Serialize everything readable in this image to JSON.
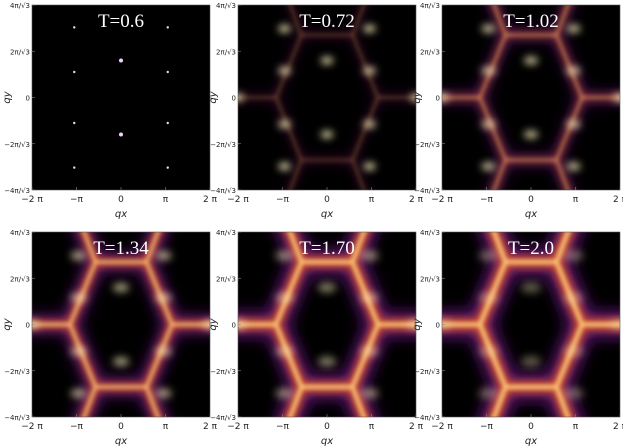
{
  "chart_data": [
    {
      "type": "heatmap",
      "title": "T=0.6",
      "xlabel": "qx",
      "ylabel": "qy",
      "xlim": [
        -6.2832,
        6.2832
      ],
      "ylim": [
        -7.2552,
        7.2552
      ],
      "xticks": [
        {
          "value": -6.2832,
          "label": "−2 π"
        },
        {
          "value": -3.1416,
          "label": "−π"
        },
        0,
        {
          "value": 3.1416,
          "label": "π"
        },
        {
          "value": 6.2832,
          "label": "2 π"
        }
      ],
      "yticks": [
        {
          "value": -7.2552,
          "label": "−4π/√3"
        },
        {
          "value": -3.6276,
          "label": "−2π/√3"
        },
        0,
        {
          "value": 3.6276,
          "label": "2π/√3"
        },
        {
          "value": 7.2552,
          "label": "4π/√3"
        }
      ]
    },
    {
      "type": "heatmap",
      "title": "T=0.72",
      "xlabel": "qx",
      "ylabel": "qy",
      "xlim": [
        -6.2832,
        6.2832
      ],
      "ylim": [
        -7.2552,
        7.2552
      ],
      "xticks": [
        {
          "value": -6.2832,
          "label": "−2 π"
        },
        {
          "value": -3.1416,
          "label": "−π"
        },
        0,
        {
          "value": 3.1416,
          "label": "π"
        },
        {
          "value": 6.2832,
          "label": "2 π"
        }
      ],
      "yticks": [
        {
          "value": -7.2552,
          "label": "−4π/√3"
        },
        {
          "value": -3.6276,
          "label": "−2π/√3"
        },
        0,
        {
          "value": 3.6276,
          "label": "2π/√3"
        },
        {
          "value": 7.2552,
          "label": "4π/√3"
        }
      ]
    },
    {
      "type": "heatmap",
      "title": "T=1.02",
      "xlabel": "qx",
      "ylabel": "qy",
      "xlim": [
        -6.2832,
        6.2832
      ],
      "ylim": [
        -7.2552,
        7.2552
      ],
      "xticks": [
        {
          "value": -6.2832,
          "label": "−2 π"
        },
        {
          "value": -3.1416,
          "label": "−π"
        },
        0,
        {
          "value": 3.1416,
          "label": "π"
        },
        {
          "value": 6.2832,
          "label": "2 π"
        }
      ],
      "yticks": [
        {
          "value": -7.2552,
          "label": "−4π/√3"
        },
        {
          "value": -3.6276,
          "label": "−2π/√3"
        },
        0,
        {
          "value": 3.6276,
          "label": "2π/√3"
        },
        {
          "value": 7.2552,
          "label": "4π/√3"
        }
      ]
    },
    {
      "type": "heatmap",
      "title": "T=1.34",
      "xlabel": "qx",
      "ylabel": "qy",
      "xlim": [
        -6.2832,
        6.2832
      ],
      "ylim": [
        -7.2552,
        7.2552
      ],
      "xticks": [
        {
          "value": -6.2832,
          "label": "−2 π"
        },
        {
          "value": -3.1416,
          "label": "−π"
        },
        0,
        {
          "value": 3.1416,
          "label": "π"
        },
        {
          "value": 6.2832,
          "label": "2 π"
        }
      ],
      "yticks": [
        {
          "value": -7.2552,
          "label": "−4π/√3"
        },
        {
          "value": -3.6276,
          "label": "−2π/√3"
        },
        0,
        {
          "value": 3.6276,
          "label": "2π/√3"
        },
        {
          "value": 7.2552,
          "label": "4π/√3"
        }
      ]
    },
    {
      "type": "heatmap",
      "title": "T=1.70",
      "xlabel": "qx",
      "ylabel": "qy",
      "xlim": [
        -6.2832,
        6.2832
      ],
      "ylim": [
        -7.2552,
        7.2552
      ],
      "xticks": [
        {
          "value": -6.2832,
          "label": "−2 π"
        },
        {
          "value": -3.1416,
          "label": "−π"
        },
        0,
        {
          "value": 3.1416,
          "label": "π"
        },
        {
          "value": 6.2832,
          "label": "2 π"
        }
      ],
      "yticks": [
        {
          "value": -7.2552,
          "label": "−4π/√3"
        },
        {
          "value": -3.6276,
          "label": "−2π/√3"
        },
        0,
        {
          "value": 3.6276,
          "label": "2π/√3"
        },
        {
          "value": 7.2552,
          "label": "4π/√3"
        }
      ]
    },
    {
      "type": "heatmap",
      "title": "T=2.0",
      "xlabel": "qx",
      "ylabel": "qy",
      "xlim": [
        -6.2832,
        6.2832
      ],
      "ylim": [
        -7.2552,
        7.2552
      ],
      "xticks": [
        {
          "value": -6.2832,
          "label": "−2 π"
        },
        {
          "value": -3.1416,
          "label": "−π"
        },
        0,
        {
          "value": 3.1416,
          "label": "π"
        },
        {
          "value": 6.2832,
          "label": "2 π"
        }
      ],
      "yticks": [
        {
          "value": -7.2552,
          "label": "−4π/√3"
        },
        {
          "value": -3.6276,
          "label": "−2π/√3"
        },
        0,
        {
          "value": 3.6276,
          "label": "2π/√3"
        },
        {
          "value": 7.2552,
          "label": "4π/√3"
        }
      ]
    }
  ]
}
